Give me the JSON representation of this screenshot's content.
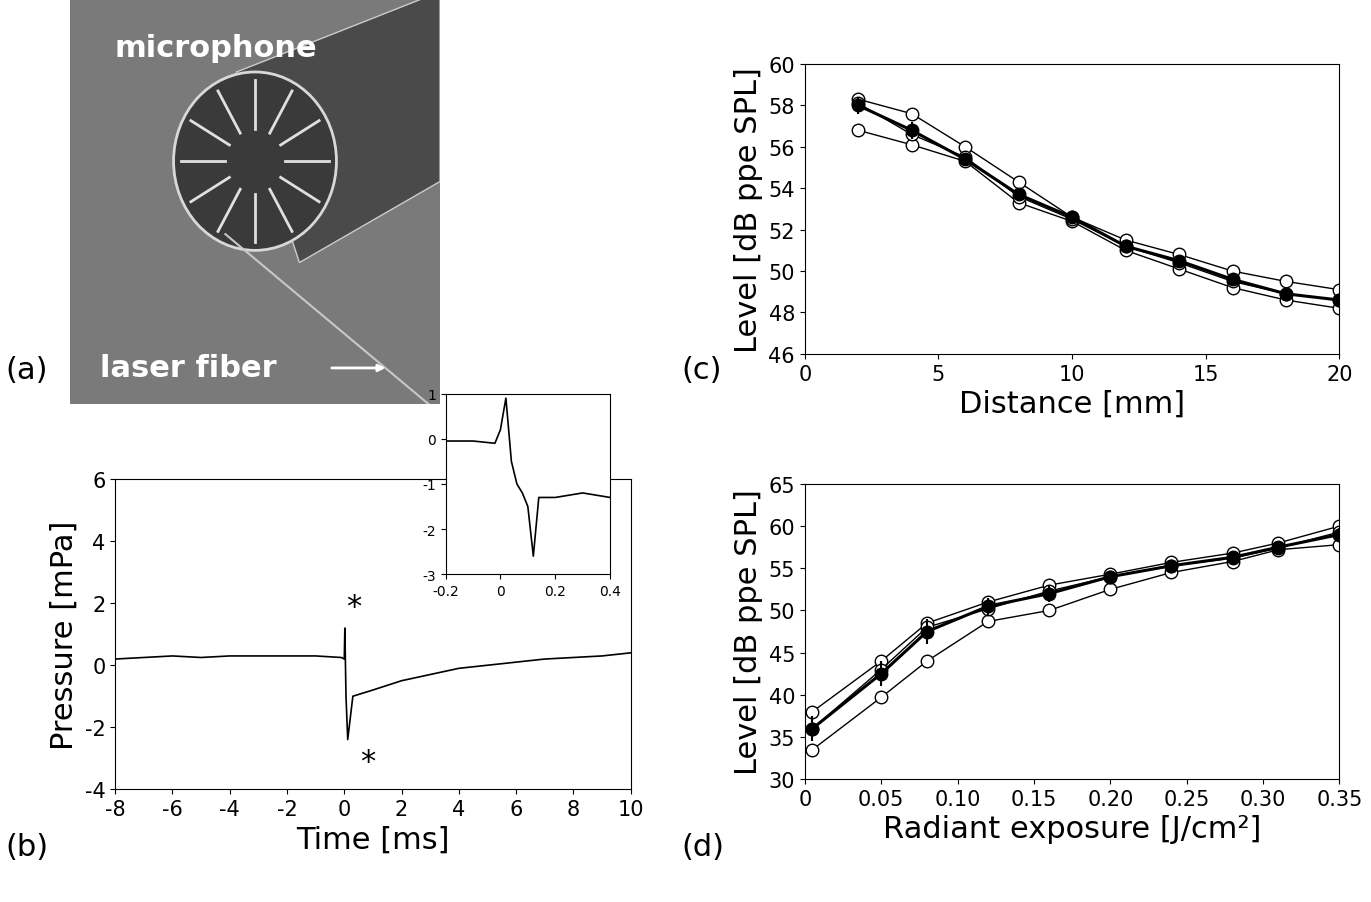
{
  "chart_data": [
    {
      "type": "image",
      "panel": "(a)",
      "annotations": [
        "microphone",
        "laser fiber"
      ]
    },
    {
      "type": "line",
      "panel": "(b)",
      "x_label": "Time [ms]",
      "y_label": "Pressure [mPa]",
      "xlim": [
        -8,
        10
      ],
      "ylim": [
        -4,
        6
      ],
      "xticks": [
        -8,
        -6,
        -4,
        -2,
        0,
        2,
        4,
        6,
        8,
        10
      ],
      "yticks": [
        -4,
        -2,
        0,
        2,
        4,
        6
      ],
      "x": [
        -8,
        -7,
        -6,
        -5,
        -4,
        -3,
        -2,
        -1,
        -0.1,
        0,
        0.02,
        0.06,
        0.12,
        0.3,
        1,
        2,
        3,
        4,
        5,
        6,
        7,
        8,
        9,
        10
      ],
      "series": [
        {
          "color": "#000000",
          "values": [
            0.2,
            0.25,
            0.3,
            0.25,
            0.3,
            0.3,
            0.3,
            0.3,
            0.25,
            0.2,
            1.2,
            -1.0,
            -2.4,
            -1.0,
            -0.8,
            -0.5,
            -0.3,
            -0.1,
            0.0,
            0.1,
            0.2,
            0.25,
            0.3,
            0.4
          ]
        }
      ],
      "annotations": [
        {
          "text": "*",
          "x": 0.05,
          "y": 1.9
        },
        {
          "text": "*",
          "x": 0.55,
          "y": -3.1
        }
      ],
      "inset": {
        "type": "line",
        "xlim": [
          -0.2,
          0.4
        ],
        "ylim": [
          -3,
          1
        ],
        "xticks": [
          -0.2,
          0,
          0.2,
          0.4
        ],
        "yticks": [
          -3,
          -2,
          -1,
          0,
          1
        ],
        "x": [
          -0.2,
          -0.1,
          -0.02,
          0,
          0.02,
          0.04,
          0.06,
          0.08,
          0.1,
          0.12,
          0.14,
          0.2,
          0.3,
          0.4
        ],
        "series": [
          {
            "color": "#000000",
            "values": [
              -0.05,
              -0.05,
              -0.1,
              0.2,
              0.9,
              -0.5,
              -1.0,
              -1.2,
              -1.5,
              -2.6,
              -1.3,
              -1.3,
              -1.2,
              -1.3
            ]
          }
        ]
      }
    },
    {
      "type": "line",
      "panel": "(c)",
      "x_label": "Distance [mm]",
      "y_label": "Level [dB ppe SPL]",
      "xlim": [
        0,
        20
      ],
      "ylim": [
        46,
        60
      ],
      "xticks": [
        0,
        5,
        10,
        15,
        20
      ],
      "yticks": [
        46,
        48,
        50,
        52,
        54,
        56,
        58,
        60
      ],
      "x": [
        2,
        4,
        6,
        8,
        10,
        12,
        14,
        16,
        18,
        20
      ],
      "series": [
        {
          "color": "#000000",
          "marker": "open_circle",
          "values": [
            58.3,
            57.6,
            56.0,
            54.3,
            52.6,
            51.5,
            50.8,
            50.0,
            49.5,
            49.1
          ]
        },
        {
          "color": "#000000",
          "marker": "open_circle",
          "values": [
            56.8,
            56.1,
            55.3,
            53.3,
            52.4,
            51.0,
            50.1,
            49.2,
            48.6,
            48.2
          ]
        },
        {
          "color": "#000000",
          "marker": "open_circle",
          "values": [
            58.1,
            56.6,
            55.5,
            53.6,
            52.5,
            51.2,
            50.4,
            49.5,
            48.9,
            48.6
          ]
        },
        {
          "color": "#000000",
          "marker": "filled_circle",
          "values": [
            58.0,
            56.8,
            55.4,
            53.7,
            52.6,
            51.2,
            50.5,
            49.6,
            48.9,
            48.6
          ],
          "error": [
            0.4,
            0.4,
            0.2,
            0.3,
            0.1,
            0.2,
            0.2,
            0.3,
            0.3,
            0.3
          ]
        }
      ]
    },
    {
      "type": "line",
      "panel": "(d)",
      "x_label": "Radiant exposure [J/cm²]",
      "y_label": "Level [dB ppe SPL]",
      "xlim": [
        0,
        0.35
      ],
      "ylim": [
        30,
        65
      ],
      "xticks": [
        0,
        0.05,
        {
          "value": 0.1,
          "label": "0.10"
        },
        0.15,
        {
          "value": 0.2,
          "label": "0.20"
        },
        0.25,
        {
          "value": 0.3,
          "label": "0.30"
        },
        0.35
      ],
      "yticks": [
        30,
        35,
        40,
        45,
        50,
        55,
        60,
        65
      ],
      "x": [
        0.005,
        0.05,
        0.08,
        0.12,
        0.16,
        0.2,
        0.24,
        0.28,
        0.31,
        0.35
      ],
      "series": [
        {
          "color": "#000000",
          "marker": "open_circle",
          "values": [
            38.0,
            44.0,
            48.5,
            51.0,
            53.0,
            54.3,
            55.7,
            56.8,
            58.0,
            60.0
          ]
        },
        {
          "color": "#000000",
          "marker": "open_circle",
          "values": [
            33.5,
            39.7,
            44.0,
            48.7,
            50.0,
            52.5,
            54.5,
            55.8,
            57.2,
            57.8
          ]
        },
        {
          "color": "#000000",
          "marker": "open_circle",
          "values": [
            36.0,
            43.0,
            48.0,
            50.2,
            52.3,
            54.0,
            55.3,
            56.2,
            57.4,
            59.3
          ]
        },
        {
          "color": "#000000",
          "marker": "filled_circle",
          "values": [
            36.0,
            42.5,
            47.5,
            50.5,
            52.0,
            54.0,
            55.3,
            56.3,
            57.5,
            59.0
          ],
          "error": [
            1.5,
            1.5,
            1.5,
            1.0,
            1.0,
            0.5,
            0.5,
            0.4,
            0.4,
            0.8
          ]
        }
      ]
    }
  ]
}
